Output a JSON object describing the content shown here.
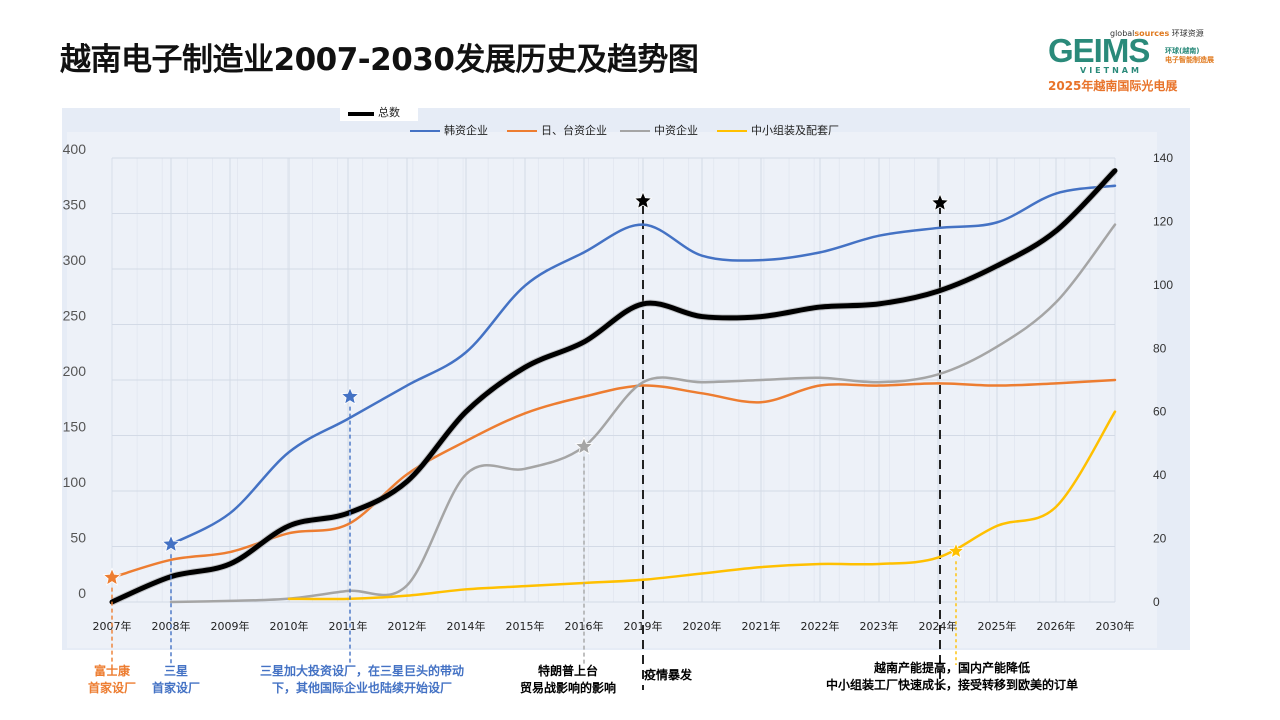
{
  "page": {
    "title": "越南电子制造业2007-2030发展历史及趋势图"
  },
  "logo": {
    "global_sources_prefix": "global",
    "global_sources_suffix": "sources",
    "global_sources_cn": "环球资源",
    "brand": "GEIMS",
    "country": "VIETNAM",
    "sub_cn_1": "环球(越南)",
    "sub_cn_2": "电子智能制造展",
    "expo_line": "2025年越南国际光电展"
  },
  "colors": {
    "korean": "#4472c4",
    "japan_taiwan": "#ed7d31",
    "chinese": "#a5a5a5",
    "sme": "#ffc000",
    "total": "#000000"
  },
  "chart_data": {
    "type": "line",
    "categories": [
      "2007年",
      "2008年",
      "2009年",
      "2010年",
      "2011年",
      "2012年",
      "2014年",
      "2015年",
      "2016年",
      "2019年",
      "2020年",
      "2021年",
      "2022年",
      "2023年",
      "2024年",
      "2025年",
      "2026年",
      "2030年"
    ],
    "y_left": {
      "ticks": [
        "0",
        "50",
        "100",
        "150",
        "200",
        "250",
        "300",
        "350",
        "400"
      ],
      "range": [
        0,
        400
      ]
    },
    "y_right": {
      "ticks": [
        "0",
        "20",
        "40",
        "60",
        "80",
        "100",
        "120",
        "140"
      ],
      "range": [
        0,
        140
      ]
    },
    "grid": true,
    "series": [
      {
        "name": "韩资企业",
        "axis": "left",
        "color": "#4472c4",
        "values": [
          null,
          52,
          80,
          135,
          165,
          195,
          225,
          285,
          315,
          340,
          312,
          308,
          315,
          330,
          337,
          342,
          368,
          375
        ]
      },
      {
        "name": "日、台资企业",
        "axis": "left",
        "color": "#ed7d31",
        "values": [
          22,
          38,
          45,
          62,
          70,
          115,
          145,
          170,
          185,
          195,
          188,
          180,
          195,
          195,
          197,
          195,
          197,
          200
        ]
      },
      {
        "name": "中资企业",
        "axis": "left",
        "color": "#a5a5a5",
        "values": [
          null,
          0,
          1,
          3,
          10,
          15,
          115,
          120,
          140,
          198,
          198,
          200,
          202,
          198,
          205,
          230,
          270,
          340
        ]
      },
      {
        "name": "中小组装及配套厂",
        "axis": "right",
        "color": "#ffc000",
        "values": [
          null,
          null,
          null,
          1,
          1,
          2,
          4,
          5,
          6,
          7,
          9,
          11,
          12,
          12,
          14,
          24,
          30,
          60
        ]
      },
      {
        "name": "总数",
        "axis": "right",
        "color": "#000000",
        "values": [
          0,
          8,
          12,
          24,
          28,
          38,
          60,
          74,
          82,
          94,
          90,
          90,
          93,
          94,
          98,
          106,
          117,
          136
        ]
      }
    ],
    "event_lines": [
      {
        "category_index": 9,
        "label": "疫情暴发"
      },
      {
        "category_index": 14,
        "label": "越南产能提高，国内产能降低\n中小组装工厂快速成长，接受转移到欧美的订单"
      }
    ]
  },
  "annotations": [
    {
      "id": "fujitsu",
      "text": "富士康\n首家设厂",
      "color": "#ed7d31",
      "category_index": 0
    },
    {
      "id": "samsung",
      "text": "三星\n首家设厂",
      "color": "#4472c4",
      "category_index": 1
    },
    {
      "id": "samsung-expand",
      "text": "三星加大投资设厂，在三星巨头的带动\n下，其他国际企业也陆续开始设厂",
      "color": "#4472c4",
      "category_index": 4
    },
    {
      "id": "trump",
      "text": "特朗普上台\n贸易战影响的影响",
      "color": "#000000",
      "category_index": 8
    },
    {
      "id": "covid",
      "text": "疫情暴发",
      "color": "#000000",
      "category_index": 9
    },
    {
      "id": "capacity",
      "text": "越南产能提高，国内产能降低\n中小组装工厂快速成长，接受转移到欧美的订单",
      "color": "#000000",
      "category_index": 14
    }
  ]
}
